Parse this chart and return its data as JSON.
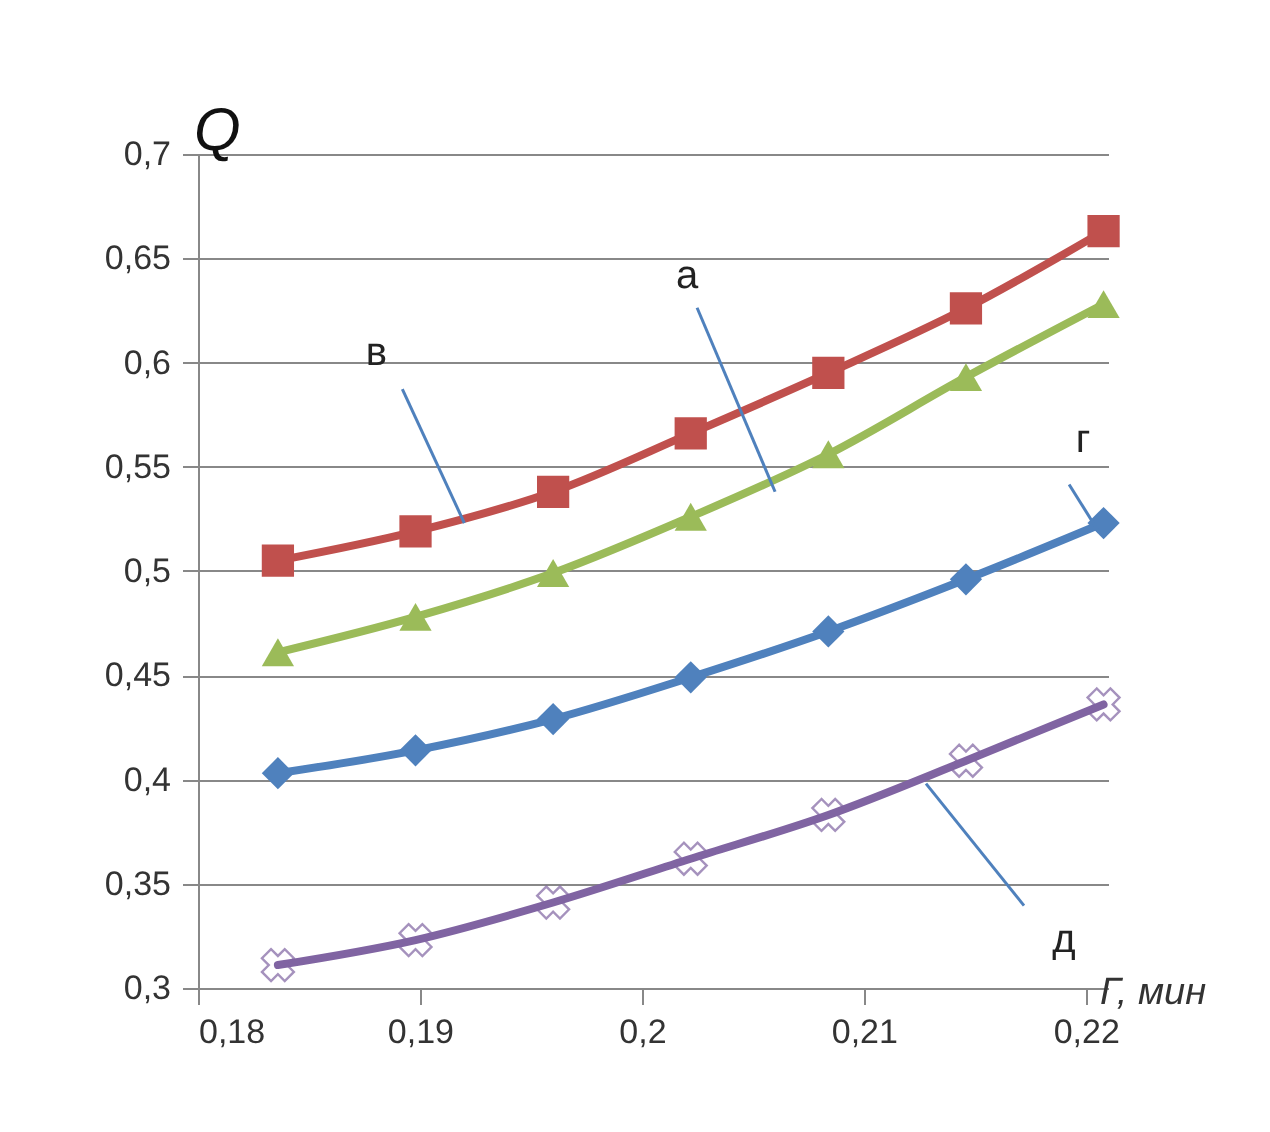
{
  "chart_data": {
    "type": "line",
    "xlabel": "Г, мин",
    "ylabel": "Q",
    "x": [
      0.1836,
      0.1898,
      0.196,
      0.2022,
      0.2084,
      0.2146,
      0.2208
    ],
    "series": [
      {
        "color": "#c0504d",
        "marker": "square",
        "values": [
          0.505,
          0.519,
          0.538,
          0.566,
          0.595,
          0.626,
          0.663
        ]
      },
      {
        "color": "#9bbb59",
        "marker": "triangle",
        "values": [
          0.461,
          0.478,
          0.499,
          0.526,
          0.556,
          0.593,
          0.628
        ]
      },
      {
        "color": "#4f81bd",
        "marker": "diamond",
        "values": [
          0.403,
          0.414,
          0.429,
          0.449,
          0.471,
          0.496,
          0.523
        ]
      },
      {
        "color": "#8064a2",
        "marker": "cross",
        "values": [
          0.311,
          0.323,
          0.341,
          0.362,
          0.383,
          0.409,
          0.436
        ]
      }
    ],
    "xlim": [
      0.18,
      0.221
    ],
    "xticks": [
      {
        "value": 0.18,
        "label": "0,18"
      },
      {
        "value": 0.19,
        "label": "0,19"
      },
      {
        "value": 0.2,
        "label": "0,2"
      },
      {
        "value": 0.21,
        "label": "0,21"
      },
      {
        "value": 0.22,
        "label": "0,22"
      }
    ],
    "ylim": [
      0.3,
      0.7
    ],
    "yticks": [
      {
        "value": 0.3,
        "label": "0,3"
      },
      {
        "value": 0.35,
        "label": "0,35"
      },
      {
        "value": 0.4,
        "label": "0,4"
      },
      {
        "value": 0.45,
        "label": "0,45"
      },
      {
        "value": 0.5,
        "label": "0,5"
      },
      {
        "value": 0.55,
        "label": "0,55"
      },
      {
        "value": 0.6,
        "label": "0,6"
      },
      {
        "value": 0.65,
        "label": "0,65"
      },
      {
        "value": 0.7,
        "label": "0,7"
      }
    ],
    "grid": "y",
    "legend": false,
    "line_style": "solid",
    "annotations": [
      {
        "text": "в",
        "x": 0.192,
        "y": 0.523
      },
      {
        "text": "а",
        "x": 0.206,
        "y": 0.538
      },
      {
        "text": "г",
        "x": 0.2206,
        "y": 0.5185
      },
      {
        "text": "д",
        "x": 0.2128,
        "y": 0.398
      }
    ]
  }
}
